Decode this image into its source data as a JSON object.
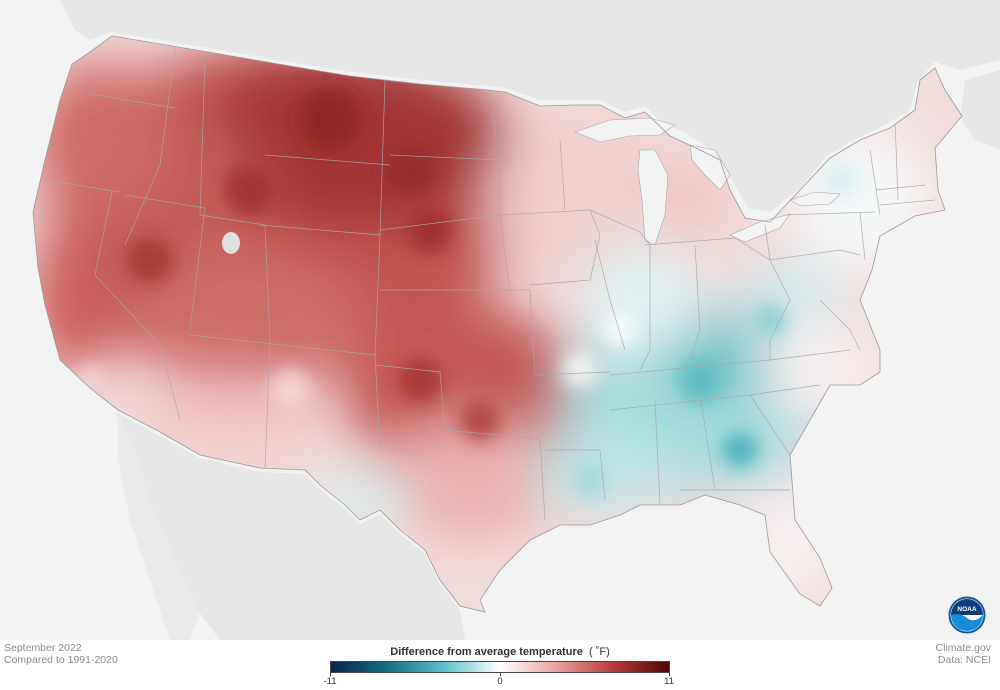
{
  "map": {
    "region": "contiguous-united-states",
    "variable": "temperature-anomaly",
    "background_land_color": "#e6e6e6",
    "ocean_color": "#f2f2f2",
    "border_color": "#a8a8a8"
  },
  "footer": {
    "period": "September 2022",
    "baseline": "Compared to 1991-2020",
    "credit_site": "Climate.gov",
    "credit_data": "Data: NCEI"
  },
  "legend": {
    "title_bold": "Difference from average temperature",
    "title_unit": "( ˚F)",
    "min_label": "-11",
    "mid_label": "0",
    "max_label": "11",
    "min_value": -11,
    "mid_value": 0,
    "max_value": 11,
    "colors": [
      "#0d2150",
      "#136f80",
      "#5cc0c8",
      "#ffffff",
      "#e9a2a0",
      "#b63c3a",
      "#4e0608"
    ]
  },
  "logo": {
    "icon": "noaa-logo-icon",
    "text": "NOAA"
  },
  "anomaly_regions": [
    {
      "name": "northern-rockies-plains",
      "value": 9
    },
    {
      "name": "great-basin",
      "value": 7
    },
    {
      "name": "pacific-northwest",
      "value": 6
    },
    {
      "name": "california-coast",
      "value": 5
    },
    {
      "name": "southern-plains",
      "value": 5
    },
    {
      "name": "desert-southwest",
      "value": 2
    },
    {
      "name": "upper-midwest",
      "value": 1.5
    },
    {
      "name": "ohio-valley",
      "value": -2
    },
    {
      "name": "tennessee-valley",
      "value": -3
    },
    {
      "name": "deep-south",
      "value": -2
    },
    {
      "name": "northeast",
      "value": 0.5
    },
    {
      "name": "florida",
      "value": 0
    }
  ]
}
